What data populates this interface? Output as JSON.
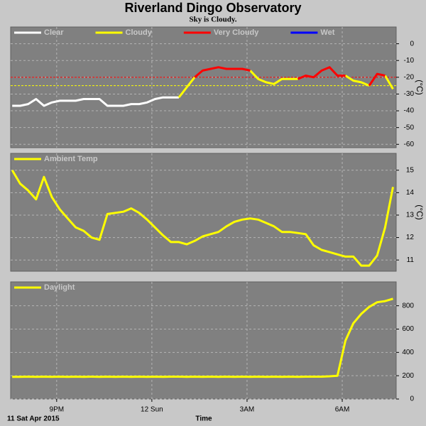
{
  "title": "Riverland Dingo Observatory",
  "subtitle": "Sky is Cloudy.",
  "date_label": "11 Sat Apr 2015",
  "xlabel": "Time",
  "chart_data": [
    {
      "type": "line",
      "ylabel": "(°C)",
      "x": [
        19.6,
        19.85,
        20.1,
        20.35,
        20.6,
        20.85,
        21.1,
        21.35,
        21.6,
        21.85,
        22.1,
        22.35,
        22.6,
        22.85,
        23.1,
        23.35,
        23.6,
        23.85,
        24.1,
        24.35,
        24.6,
        24.85,
        25.1,
        25.35,
        25.6,
        25.85,
        26.1,
        26.35,
        26.6,
        26.85,
        27.1,
        27.35,
        27.6,
        27.85,
        28.1,
        28.35,
        28.6,
        28.85,
        29.1,
        29.35,
        29.6,
        29.85,
        30.1,
        30.35,
        30.6,
        30.85,
        31.1,
        31.35,
        31.6
      ],
      "xlim": [
        19.55,
        31.7
      ],
      "ylim": [
        -62,
        10
      ],
      "yticks": [
        0,
        -10,
        -20,
        -30,
        -40,
        -50,
        -60
      ],
      "reference_lines": [
        {
          "value": -20,
          "color": "#ff0000"
        },
        {
          "value": -25,
          "color": "#ffff00"
        }
      ],
      "series": [
        {
          "name": "Clear",
          "color": "#ffffff",
          "values": [
            -37,
            -37,
            -36,
            -33,
            -37,
            -35,
            -34,
            -34,
            -34,
            -33,
            -33,
            -33,
            -37,
            -37,
            -37,
            -36,
            -36,
            -35,
            -33,
            -32,
            -32,
            -32,
            null,
            null,
            null,
            null,
            null,
            null,
            null,
            null,
            null,
            null,
            null,
            null,
            null,
            null,
            null,
            null,
            null,
            null,
            null,
            null,
            null,
            null,
            null,
            null,
            null,
            null,
            null
          ]
        },
        {
          "name": "Cloudy",
          "color": "#ffff00",
          "values": [
            null,
            null,
            null,
            null,
            null,
            null,
            null,
            null,
            null,
            null,
            null,
            null,
            null,
            null,
            null,
            null,
            null,
            null,
            null,
            null,
            null,
            -32,
            -26,
            -20,
            null,
            null,
            null,
            null,
            null,
            null,
            -16,
            -21,
            -23,
            -24,
            -21,
            -21,
            -21,
            null,
            null,
            null,
            null,
            null,
            -19,
            -22,
            -23,
            -25,
            null,
            -19,
            -27
          ]
        },
        {
          "name": "Very Cloudy",
          "color": "#ff0000",
          "values": [
            null,
            null,
            null,
            null,
            null,
            null,
            null,
            null,
            null,
            null,
            null,
            null,
            null,
            null,
            null,
            null,
            null,
            null,
            null,
            null,
            null,
            null,
            null,
            -20,
            -16,
            -15,
            -14,
            -15,
            -15,
            -15,
            -16,
            null,
            null,
            null,
            null,
            null,
            -21,
            -19,
            -20,
            -16,
            -14,
            -19,
            -19,
            null,
            null,
            -25,
            -18,
            -19,
            null
          ]
        },
        {
          "name": "Wet",
          "color": "#0000ff",
          "values": [
            null,
            null,
            null,
            null,
            null,
            null,
            null,
            null,
            null,
            null,
            null,
            null,
            null,
            null,
            null,
            null,
            null,
            null,
            null,
            null,
            null,
            null,
            null,
            null,
            null,
            null,
            null,
            null,
            null,
            null,
            null,
            null,
            null,
            null,
            null,
            null,
            null,
            null,
            null,
            null,
            null,
            null,
            null,
            null,
            null,
            null,
            null,
            null,
            null
          ]
        }
      ]
    },
    {
      "type": "line",
      "ylabel": "(°C)",
      "x": [
        19.6,
        19.85,
        20.1,
        20.35,
        20.6,
        20.85,
        21.1,
        21.35,
        21.6,
        21.85,
        22.1,
        22.35,
        22.6,
        22.85,
        23.1,
        23.35,
        23.6,
        23.85,
        24.1,
        24.35,
        24.6,
        24.85,
        25.1,
        25.35,
        25.6,
        25.85,
        26.1,
        26.35,
        26.6,
        26.85,
        27.1,
        27.35,
        27.6,
        27.85,
        28.1,
        28.35,
        28.6,
        28.85,
        29.1,
        29.35,
        29.6,
        29.85,
        30.1,
        30.35,
        30.6,
        30.85,
        31.1,
        31.35,
        31.6
      ],
      "xlim": [
        19.55,
        31.7
      ],
      "ylim": [
        10.5,
        15.75
      ],
      "yticks": [
        15,
        14,
        13,
        12,
        11
      ],
      "series": [
        {
          "name": "Ambient Temp",
          "color": "#ffff00",
          "values": [
            15.0,
            14.4,
            14.1,
            13.7,
            14.7,
            13.8,
            13.25,
            12.85,
            12.45,
            12.3,
            12.0,
            11.9,
            13.05,
            13.1,
            13.15,
            13.3,
            13.1,
            12.8,
            12.45,
            12.1,
            11.8,
            11.8,
            11.7,
            11.85,
            12.05,
            12.15,
            12.25,
            12.5,
            12.7,
            12.8,
            12.85,
            12.8,
            12.65,
            12.5,
            12.25,
            12.25,
            12.2,
            12.15,
            11.65,
            11.45,
            11.35,
            11.25,
            11.15,
            11.15,
            10.75,
            10.75,
            11.2,
            12.45,
            14.25
          ]
        }
      ]
    },
    {
      "type": "line",
      "x": [
        19.6,
        19.85,
        20.1,
        20.35,
        20.6,
        20.85,
        21.1,
        21.35,
        21.6,
        21.85,
        22.1,
        22.35,
        22.6,
        22.85,
        23.1,
        23.35,
        23.6,
        23.85,
        24.1,
        24.35,
        24.6,
        24.85,
        25.1,
        25.35,
        25.6,
        25.85,
        26.1,
        26.35,
        26.6,
        26.85,
        27.1,
        27.35,
        27.6,
        27.85,
        28.1,
        28.35,
        28.6,
        28.85,
        29.1,
        29.35,
        29.6,
        29.85,
        30.1,
        30.35,
        30.6,
        30.85,
        31.1,
        31.35,
        31.6
      ],
      "xlim": [
        19.55,
        31.7
      ],
      "xticks": [
        {
          "value": 21,
          "label": "9PM"
        },
        {
          "value": 24,
          "label": "12 Sun"
        },
        {
          "value": 27,
          "label": "3AM"
        },
        {
          "value": 30,
          "label": "6AM"
        }
      ],
      "ylim": [
        0,
        1005
      ],
      "yticks": [
        0,
        200,
        400,
        600,
        800
      ],
      "series": [
        {
          "name": "Daylight",
          "color": "#ffff00",
          "values": [
            190,
            190,
            192,
            190,
            192,
            190,
            192,
            190,
            192,
            190,
            192,
            190,
            192,
            190,
            192,
            190,
            192,
            190,
            192,
            190,
            192,
            192,
            190,
            192,
            190,
            192,
            190,
            192,
            190,
            192,
            190,
            192,
            190,
            192,
            190,
            192,
            190,
            192,
            192,
            192,
            195,
            200,
            500,
            650,
            730,
            790,
            830,
            840,
            860
          ]
        }
      ]
    }
  ]
}
